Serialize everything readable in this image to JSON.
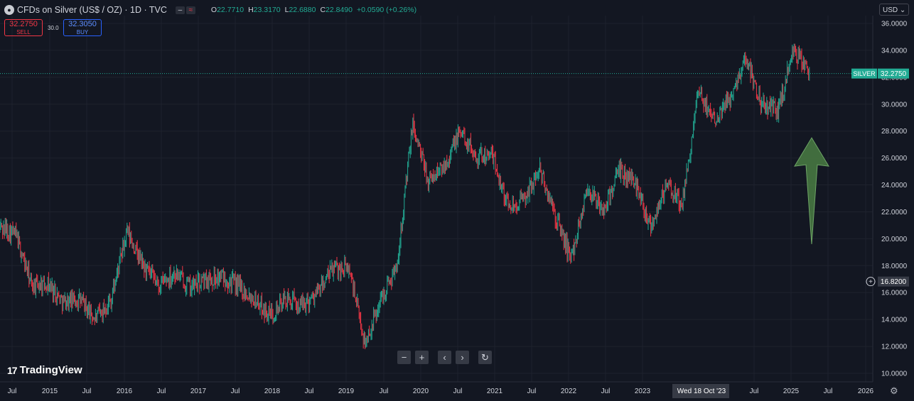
{
  "header": {
    "title": "CFDs on Silver (US$ / OZ) · 1D · TVC",
    "symbol_icon": "silver-coin-icon",
    "ohlc": [
      {
        "k": "O",
        "v": "22.7710"
      },
      {
        "k": "H",
        "v": "23.3170"
      },
      {
        "k": "L",
        "v": "22.6880"
      },
      {
        "k": "C",
        "v": "22.8490"
      },
      {
        "k": "",
        "v": "+0.0590 (+0.26%)"
      }
    ],
    "dash_badge": "–",
    "wave_badge": "≈"
  },
  "trade": {
    "sell_price": "32.2750",
    "sell_label": "SELL",
    "buy_price": "32.3050",
    "buy_label": "BUY",
    "spread": "30.0"
  },
  "currency": "USD ⌄",
  "nav": {
    "zoom_out": "−",
    "zoom_in": "+",
    "left": "‹",
    "right": "›",
    "reset": "↻"
  },
  "branding": {
    "logo_mark": "17",
    "logo_text": "TradingView"
  },
  "colors": {
    "up": "#22ab94",
    "down": "#f23645",
    "arrow": "#4a7c43",
    "tag": "#22ab94",
    "crosshair_tag": "#363a45"
  },
  "chart_data": {
    "type": "line",
    "title": "CFDs on Silver (US$ / OZ)",
    "instrument": "SILVER",
    "interval": "1D",
    "x": [
      "2014-07",
      "2014-10",
      "2015-01",
      "2015-04",
      "2015-07",
      "2015-10",
      "2016-01",
      "2016-04",
      "2016-07",
      "2016-10",
      "2017-01",
      "2017-04",
      "2017-07",
      "2017-10",
      "2018-01",
      "2018-04",
      "2018-07",
      "2018-10",
      "2019-01",
      "2019-04",
      "2019-07",
      "2019-10",
      "2020-01",
      "2020-03",
      "2020-05",
      "2020-07",
      "2020-08",
      "2020-10",
      "2021-01",
      "2021-02",
      "2021-04",
      "2021-06",
      "2021-09",
      "2021-12",
      "2022-03",
      "2022-06",
      "2022-09",
      "2022-12",
      "2023-02",
      "2023-05",
      "2023-07",
      "2023-10",
      "2023-12",
      "2024-03",
      "2024-05",
      "2024-07",
      "2024-09",
      "2024-10",
      "2024-12",
      "2025-01",
      "2025-03",
      "2025-04"
    ],
    "series": [
      {
        "values": [
          20.9,
          20.3,
          16.5,
          16.7,
          15.3,
          15.5,
          14.0,
          15.5,
          20.5,
          18.0,
          16.5,
          17.5,
          16.4,
          17.0,
          17.2,
          16.5,
          15.6,
          14.3,
          15.5,
          15.0,
          16.0,
          17.8,
          17.8,
          12.2,
          15.5,
          18.0,
          28.5,
          24.2,
          25.5,
          28.0,
          26.2,
          26.2,
          22.5,
          22.8,
          25.2,
          21.6,
          18.5,
          23.8,
          22.0,
          25.0,
          24.3,
          21.0,
          24.0,
          22.5,
          30.8,
          29.0,
          30.5,
          33.5,
          30.0,
          29.5,
          34.0,
          32.3
        ]
      }
    ],
    "ylim": [
      10,
      36
    ],
    "yticks": [
      "36.0000",
      "34.0000",
      "32.0000",
      "30.0000",
      "28.0000",
      "26.0000",
      "24.0000",
      "22.0000",
      "20.0000",
      "18.0000",
      "16.0000",
      "14.0000",
      "12.0000",
      "10.0000"
    ],
    "xticks": [
      "Jul",
      "2015",
      "Jul",
      "2016",
      "Jul",
      "2017",
      "Jul",
      "2018",
      "Jul",
      "2019",
      "Jul",
      "2020",
      "Jul",
      "2021",
      "Jul",
      "2022",
      "Jul",
      "2023",
      "Wed 18 Oct '23",
      "Jul",
      "2025",
      "Jul",
      "2026"
    ],
    "current_price": {
      "label": "SILVER",
      "value": "32.2750",
      "y": 32.275
    },
    "crosshair_price": {
      "value": "16.8200",
      "y": 16.82
    },
    "crosshair_date": "Wed 18 Oct '23",
    "annotation": {
      "type": "arrow-up",
      "from_y": 19.6,
      "to_y": 27.5
    },
    "grid": true
  }
}
